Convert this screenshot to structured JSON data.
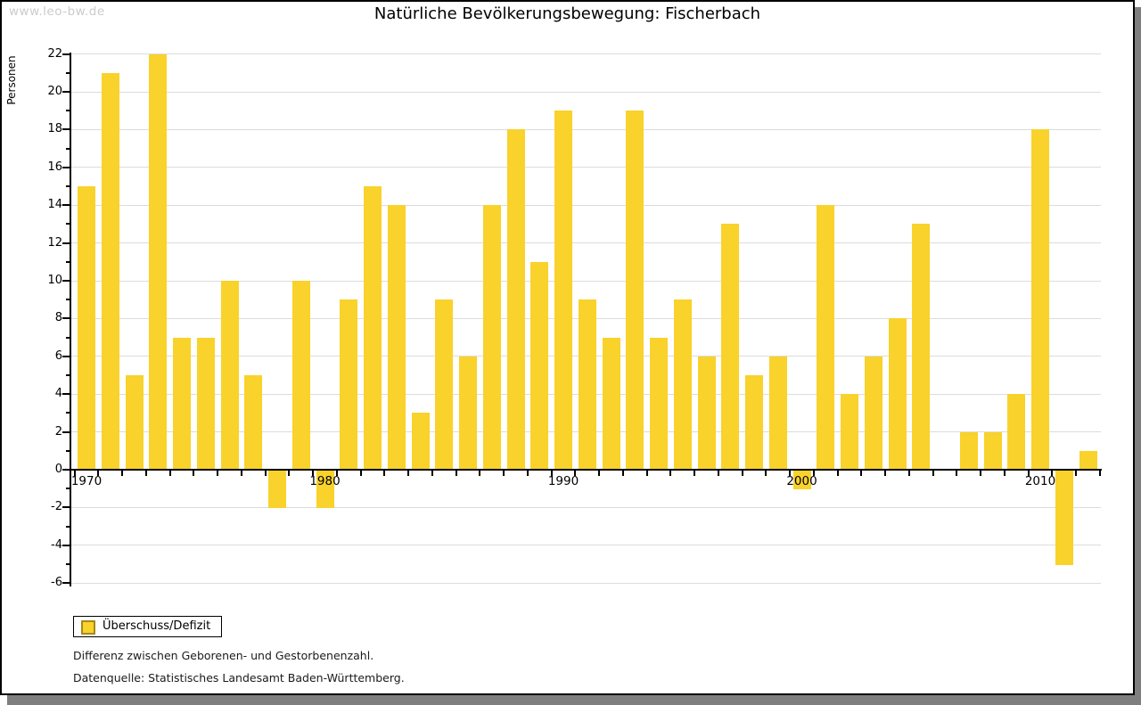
{
  "watermark": "www.leo-bw.de",
  "header": {
    "title": "Natürliche Bevölkerungsbewegung: Fischerbach"
  },
  "y_axis": {
    "label": "Personen"
  },
  "legend": {
    "label": "Überschuss/Defizit"
  },
  "notes": {
    "line1": "Differenz zwischen Geborenen- und Gestorbenenzahl.",
    "line2": "Datenquelle: Statistisches Landesamt Baden-Württemberg."
  },
  "colors": {
    "bar": "#f9d22b",
    "swatch_border": "#a6881b",
    "grid": "#dcdcdc",
    "axis": "#000000",
    "watermark": "#cbcbcb",
    "shadow": "#7f7f7f"
  },
  "chart_data": {
    "type": "bar",
    "title": "Natürliche Bevölkerungsbewegung: Fischerbach",
    "xlabel": "",
    "ylabel": "Personen",
    "series_name": "Überschuss/Defizit",
    "ylim": [
      -6,
      22
    ],
    "ytick_step": 2,
    "grid": true,
    "legend_position": "bottom-left",
    "x": [
      1970,
      1971,
      1972,
      1973,
      1974,
      1975,
      1976,
      1977,
      1978,
      1979,
      1980,
      1981,
      1982,
      1983,
      1984,
      1985,
      1986,
      1987,
      1988,
      1989,
      1990,
      1991,
      1992,
      1993,
      1994,
      1995,
      1996,
      1997,
      1998,
      1999,
      2000,
      2001,
      2002,
      2003,
      2004,
      2005,
      2006,
      2007,
      2008,
      2009,
      2010,
      2011,
      2012
    ],
    "values": [
      15,
      21,
      5,
      22,
      7,
      7,
      10,
      5,
      -2,
      10,
      -2,
      9,
      15,
      14,
      3,
      9,
      6,
      14,
      18,
      11,
      19,
      9,
      7,
      19,
      7,
      9,
      6,
      13,
      5,
      6,
      -1,
      14,
      4,
      6,
      8,
      13,
      0,
      2,
      2,
      4,
      18,
      -5,
      1
    ],
    "decade_ticks": [
      1970,
      1980,
      1990,
      2000,
      2010
    ]
  }
}
